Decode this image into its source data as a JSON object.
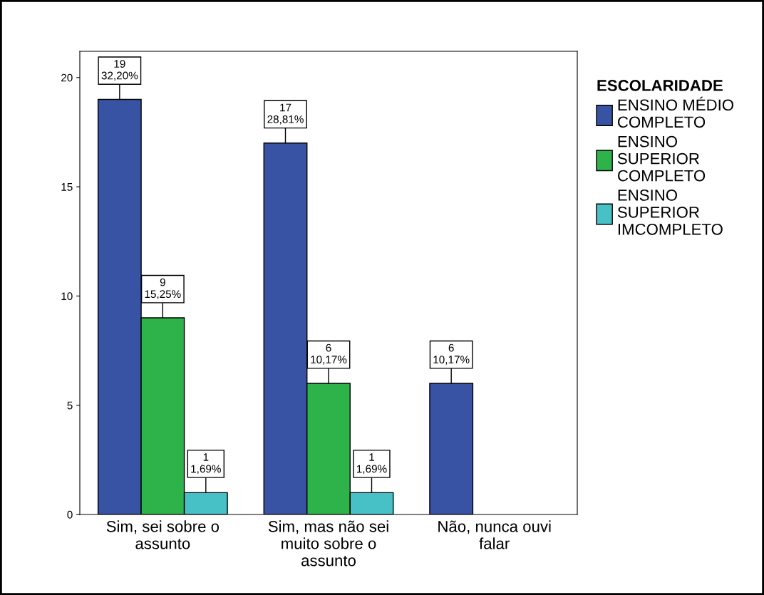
{
  "chart_data": {
    "type": "bar",
    "categories": [
      "Sim, sei sobre o\nassunto",
      "Sim, mas não sei\nmuito sobre o\nassunto",
      "Não, nunca ouvi\nfalar"
    ],
    "series": [
      {
        "name": "ENSINO MÉDIO\nCOMPLETO",
        "color": "#3953a4",
        "values": [
          19,
          17,
          6
        ],
        "value_labels": [
          "19\n32,20%",
          "17\n28,81%",
          "6\n10,17%"
        ]
      },
      {
        "name": "ENSINO\nSUPERIOR\nCOMPLETO",
        "color": "#2db34a",
        "values": [
          9,
          6,
          null
        ],
        "value_labels": [
          "9\n15,25%",
          "6\n10,17%",
          null
        ]
      },
      {
        "name": "ENSINO\nSUPERIOR\nIMCOMPLETO",
        "color": "#48c1c6",
        "values": [
          1,
          1,
          null
        ],
        "value_labels": [
          "1\n1,69%",
          "1\n1,69%",
          null
        ]
      }
    ],
    "legend_title": "ESCOLARIDADE",
    "legend": "right",
    "ylim": [
      0,
      21.2
    ],
    "yticks": [
      0,
      5,
      10,
      15,
      20
    ],
    "grid": false
  }
}
